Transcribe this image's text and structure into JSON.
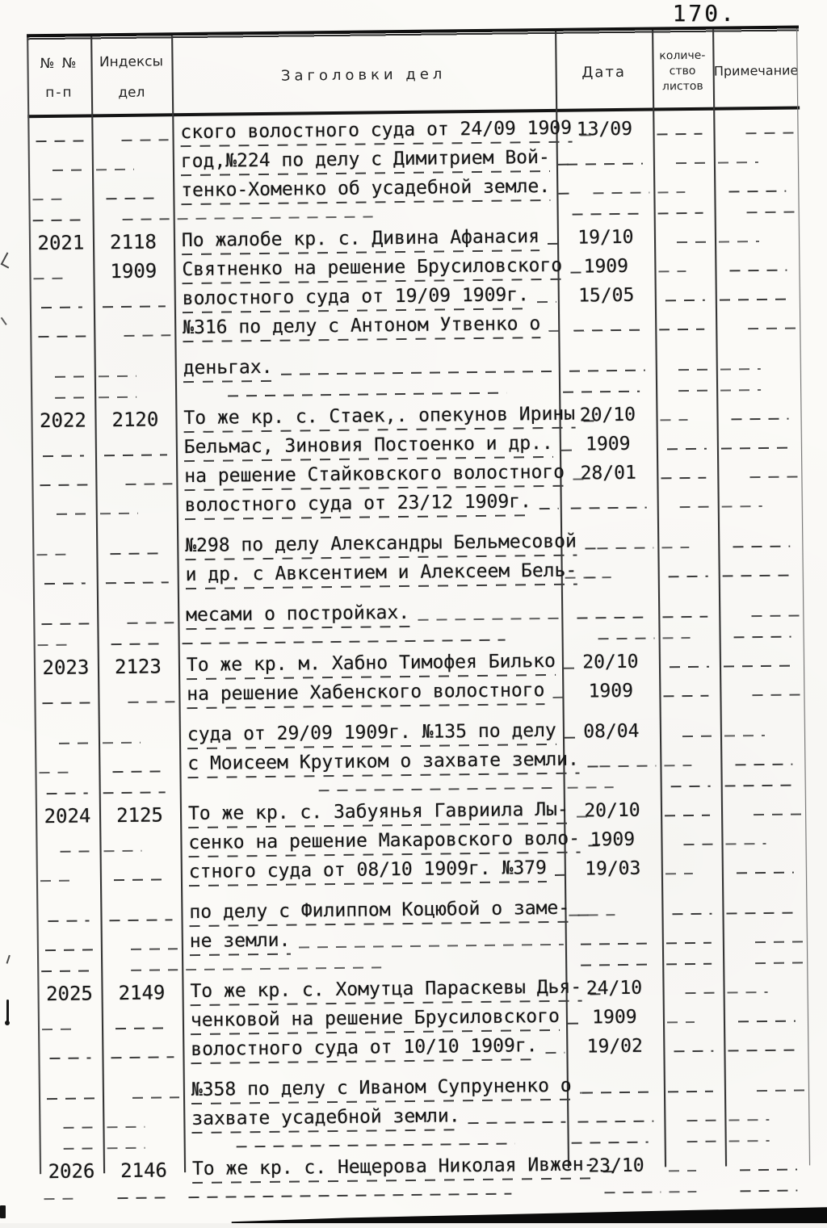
{
  "page_number": "170.",
  "colors": {
    "ink": "#1b1b1b",
    "paper": "#fbfaf7",
    "rule": "#343434"
  },
  "header": {
    "num1": "№ №",
    "num2": "п-п",
    "index1": "Индексы",
    "index2": "дел",
    "title": "Заголовки дел",
    "date": "Дата",
    "sheets1": "количе-",
    "sheets2": "ство",
    "sheets3": "листов",
    "note": "Примечание"
  },
  "rows": [
    {
      "num": "",
      "index": "",
      "index2": "",
      "lines": [
        {
          "t": "ского волостного суда от 24/09 1909",
          "d": "13/09"
        },
        {
          "t": "год,№224 по делу с Димитрием Вой-",
          "d": ""
        },
        {
          "t": "тенко-Хоменко об усадебной земле.",
          "d": ""
        }
      ]
    },
    {
      "num": "2021",
      "index": "2118",
      "index2": "1909",
      "lines": [
        {
          "t": "По жалобе кр. с. Дивина Афанасия",
          "d": "19/10"
        },
        {
          "t": "Святненко на решение Брусиловского",
          "d": "1909"
        },
        {
          "t": "волостного суда от 19/09 1909г.",
          "d": "15/05"
        },
        {
          "t": "№316 по делу с Антоном Утвенко о",
          "d": ""
        },
        {
          "t": "деньгах.",
          "d": "",
          "gap": true
        }
      ]
    },
    {
      "num": "2022",
      "index": "2120",
      "index2": "",
      "lines": [
        {
          "t": "То же кр. с. Стаек,. опекунов Ирины",
          "d": "20/10"
        },
        {
          "t": "Бельмас, Зиновия Постоенко и др..",
          "d": "1909"
        },
        {
          "t": "на решение Стайковского волостного",
          "d": "28/01"
        },
        {
          "t": "волостного суда от 23/12 1909г.",
          "d": ""
        },
        {
          "t": "№298 по делу Александры Бельмесовой",
          "d": "",
          "gap": true
        },
        {
          "t": "и др. с Авксентием и Алексеем Бель-",
          "d": ""
        },
        {
          "t": "месами о постройках.",
          "d": "",
          "gap": true
        }
      ]
    },
    {
      "num": "2023",
      "index": "2123",
      "index2": "",
      "lines": [
        {
          "t": "То же кр. м. Хабно Тимофея Билько",
          "d": "20/10"
        },
        {
          "t": "на решение Хабенского волостного",
          "d": "1909"
        },
        {
          "t": "суда от 29/09 1909г. №135 по делу",
          "d": "08/04",
          "gap": true
        },
        {
          "t": "с Моисеем Крутиком о захвате земли.",
          "d": ""
        }
      ]
    },
    {
      "num": "2024",
      "index": "2125",
      "index2": "",
      "lines": [
        {
          "t": "То же кр. с. Забуянья Гавриила Лы-",
          "d": "20/10"
        },
        {
          "t": "сенко на решение Макаровского воло-",
          "d": "1909"
        },
        {
          "t": "стного суда от 08/10 1909г. №379",
          "d": "19/03"
        },
        {
          "t": "по делу с Филиппом Коцюбой о заме-",
          "d": "",
          "gap": true
        },
        {
          "t": "не земли.",
          "d": ""
        }
      ]
    },
    {
      "num": "2025",
      "index": "2149",
      "index2": "",
      "lines": [
        {
          "t": "То же кр. с. Хомутца Параскевы Дья-",
          "d": "24/10"
        },
        {
          "t": "ченковой на решение Брусиловского",
          "d": "1909"
        },
        {
          "t": "волостного суда от 10/10 1909г.",
          "d": "19/02"
        },
        {
          "t": "№358 по делу с Иваном Супруненко о",
          "d": "",
          "gap": true
        },
        {
          "t": "захвате усадебной земли.",
          "d": ""
        }
      ]
    },
    {
      "num": "2026",
      "index": "2146",
      "index2": "",
      "lines": [
        {
          "t": "То же кр. с. Нещерова Николая Ивжен-",
          "d": "23/10"
        }
      ]
    }
  ]
}
